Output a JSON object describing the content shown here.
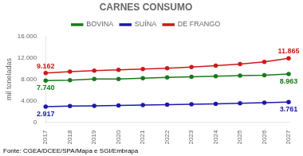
{
  "chart_data": {
    "type": "line",
    "title": "CARNES CONSUMO",
    "y_label": "mil toneladas",
    "footnote": "Fonte: CGEA/DCEE/SPA/Mapa e SGI/Embrapa",
    "categories": [
      "2017",
      "2018",
      "2019",
      "2020",
      "2021",
      "2022",
      "2023",
      "2024",
      "2025",
      "2026",
      "2027"
    ],
    "series": [
      {
        "name": "BOVINA",
        "color": "#1a7a1a",
        "marker": "circle",
        "values": [
          7740,
          7800,
          8050,
          8050,
          8200,
          8350,
          8450,
          8550,
          8650,
          8750,
          8963
        ],
        "value_labels": [
          "7.740",
          null,
          null,
          null,
          null,
          null,
          null,
          null,
          null,
          null,
          "8.963"
        ]
      },
      {
        "name": "SUÍNA",
        "color": "#1a1aaa",
        "marker": "circle",
        "values": [
          2917,
          3000,
          3050,
          3120,
          3200,
          3280,
          3350,
          3430,
          3520,
          3620,
          3761
        ],
        "value_labels": [
          "2.917",
          null,
          null,
          null,
          null,
          null,
          null,
          null,
          null,
          null,
          "3.761"
        ]
      },
      {
        "name": "DE FRANGO",
        "color": "#cc1a1a",
        "marker": "circle",
        "values": [
          9162,
          9400,
          9600,
          9750,
          9900,
          10050,
          10250,
          10500,
          10800,
          11200,
          11865
        ],
        "value_labels": [
          "9.162",
          null,
          null,
          null,
          null,
          null,
          null,
          null,
          null,
          null,
          "11.865"
        ]
      }
    ],
    "ylim": [
      0,
      16000
    ],
    "yticks": [
      0,
      {
        "value": 4000,
        "label": "4.000"
      },
      {
        "value": 8000,
        "label": "8.000"
      },
      {
        "value": 12000,
        "label": "12.000"
      },
      {
        "value": 16000,
        "label": "16.000"
      }
    ],
    "grid": false,
    "legend": "top"
  }
}
